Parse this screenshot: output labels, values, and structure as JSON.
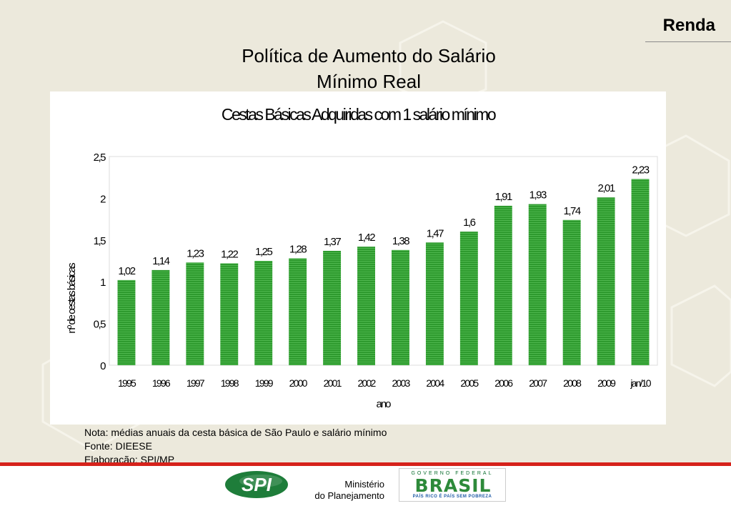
{
  "header": {
    "section_tag": "Renda"
  },
  "slide": {
    "title_line1": "Política de Aumento do Salário",
    "title_line2": "Mínimo Real"
  },
  "chart_data": {
    "type": "bar",
    "title": "Cestas Básicas Adquiridas com 1 salário mínimo",
    "xlabel": "ano",
    "ylabel": "nº de cestas básicas",
    "ylim": [
      0,
      2.5
    ],
    "yticks": [
      "0",
      "0,5",
      "1",
      "1,5",
      "2",
      "2,5"
    ],
    "ytick_values": [
      0,
      0.5,
      1,
      1.5,
      2,
      2.5
    ],
    "categories": [
      "1995",
      "1996",
      "1997",
      "1998",
      "1999",
      "2000",
      "2001",
      "2002",
      "2003",
      "2004",
      "2005",
      "2006",
      "2007",
      "2008",
      "2009",
      "jan/10"
    ],
    "values": [
      1.02,
      1.14,
      1.23,
      1.22,
      1.25,
      1.28,
      1.37,
      1.42,
      1.38,
      1.47,
      1.6,
      1.91,
      1.93,
      1.74,
      2.01,
      2.23
    ],
    "value_labels": [
      "1,02",
      "1,14",
      "1,23",
      "1,22",
      "1,25",
      "1,28",
      "1,37",
      "1,42",
      "1,38",
      "1,47",
      "1,6",
      "1,91",
      "1,93",
      "1,74",
      "2,01",
      "2,23"
    ],
    "bar_color": "#2e9a2e",
    "grid": false,
    "legend": "none"
  },
  "notes": {
    "nota": "Nota: médias anuais da cesta básica de São Paulo e salário mínimo",
    "fonte": "Fonte: DIEESE",
    "elaboracao": "Elaboração: SPI/MP"
  },
  "footer": {
    "spi_logo": "SPI",
    "ministry_line1": "Ministério",
    "ministry_line2": "do Planejamento",
    "gov_label": "GOVERNO FEDERAL",
    "brasil_label": "BRASIL",
    "brasil_slogan": "PAÍS RICO É PAÍS SEM POBREZA"
  },
  "colors": {
    "accent_red": "#d6221b",
    "bar_green": "#2e9a2e",
    "background": "#ece9dc"
  }
}
